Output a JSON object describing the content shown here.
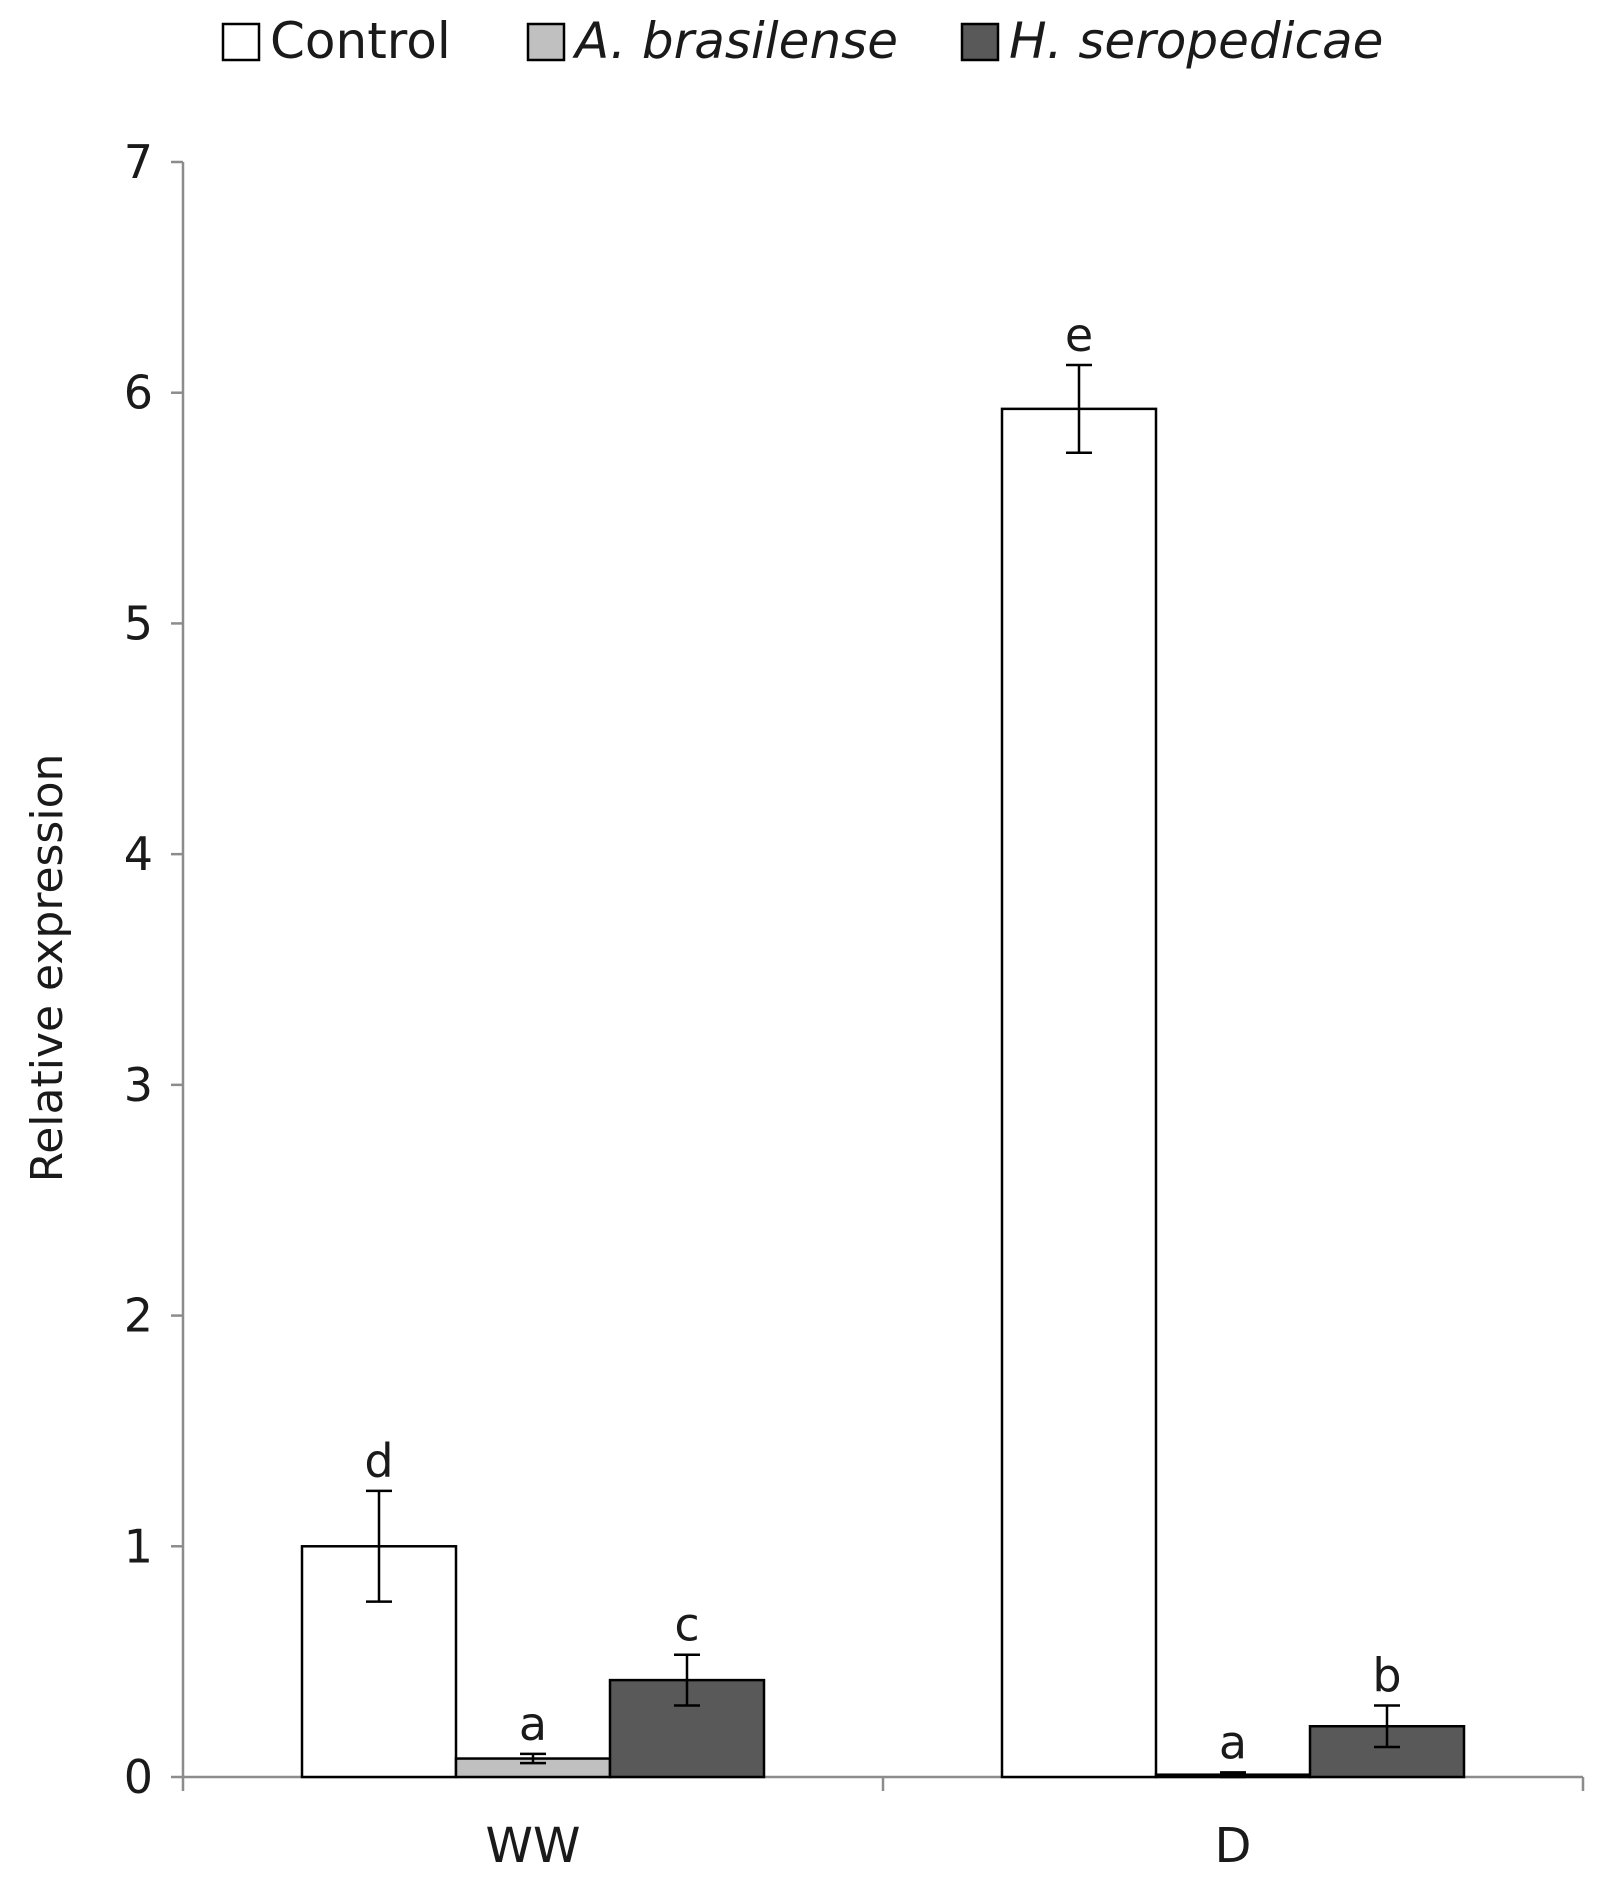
{
  "chart_data": {
    "type": "bar",
    "categories": [
      "WW",
      "D"
    ],
    "ylabel": "Relative expression",
    "xlabel": "",
    "ylim": [
      0,
      7
    ],
    "yticks": [
      0,
      1,
      2,
      3,
      4,
      5,
      6,
      7
    ],
    "ytick_labels": [
      "0",
      "1",
      "2",
      "3",
      "4",
      "5",
      "6",
      "7"
    ],
    "grid": false,
    "legend_position": "top",
    "series": [
      {
        "name": "Control",
        "color": "#ffffff",
        "italic": false,
        "values": [
          1.0,
          5.93
        ],
        "errors": [
          0.24,
          0.19
        ],
        "letters": [
          "d",
          "e"
        ]
      },
      {
        "name": "A. brasilense",
        "color": "#c0c0c0",
        "italic": true,
        "values": [
          0.08,
          0.01
        ],
        "errors": [
          0.02,
          0.01
        ],
        "letters": [
          "a",
          "a"
        ]
      },
      {
        "name": "H. seropedicae",
        "color": "#595959",
        "italic": true,
        "values": [
          0.42,
          0.22
        ],
        "errors": [
          0.11,
          0.09
        ],
        "letters": [
          "c",
          "b"
        ]
      }
    ]
  }
}
